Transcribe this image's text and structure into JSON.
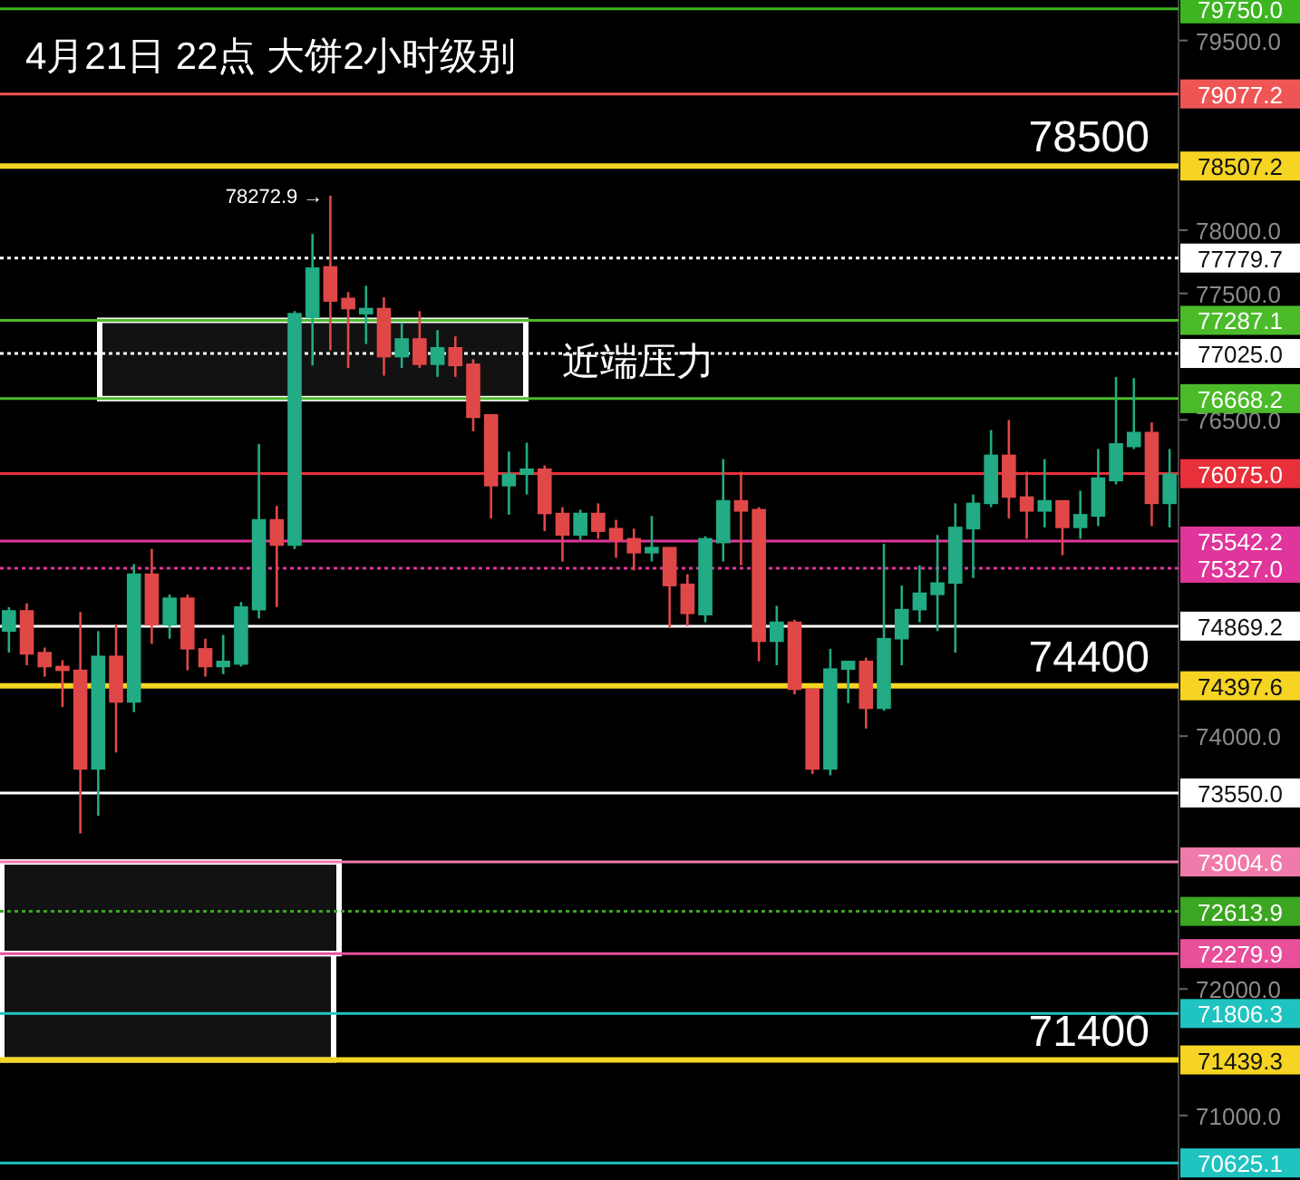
{
  "chart_data": {
    "type": "candlestick",
    "title": "4月21日 22点 大饼2小时级别",
    "categories": [
      null,
      null,
      null,
      null,
      null,
      null,
      null,
      null,
      null,
      null,
      null,
      null,
      null,
      null,
      null,
      null,
      null,
      null,
      null,
      null,
      null,
      null,
      null,
      null,
      null,
      null,
      null,
      null,
      null,
      null,
      null,
      null,
      null,
      null,
      null,
      null,
      null,
      null,
      null,
      null,
      null,
      null,
      null,
      null,
      null,
      null,
      null,
      null,
      null,
      null,
      null,
      null,
      null,
      null,
      null,
      null,
      null,
      null,
      null,
      null,
      null,
      null,
      null,
      null,
      null,
      null
    ],
    "ohlc": [
      [
        74830,
        75020,
        74660,
        74990
      ],
      [
        74990,
        75050,
        74560,
        74650
      ],
      [
        74660,
        74700,
        74470,
        74550
      ],
      [
        74550,
        74600,
        74230,
        74520
      ],
      [
        74520,
        74980,
        73230,
        73740
      ],
      [
        73740,
        74830,
        73370,
        74630
      ],
      [
        74630,
        74880,
        73870,
        74270
      ],
      [
        74270,
        75360,
        74190,
        75280
      ],
      [
        75280,
        75480,
        74730,
        74880
      ],
      [
        74880,
        75120,
        74770,
        75090
      ],
      [
        75090,
        75120,
        74520,
        74690
      ],
      [
        74690,
        74770,
        74470,
        74550
      ],
      [
        74550,
        74800,
        74490,
        74590
      ],
      [
        74570,
        75060,
        74550,
        75020
      ],
      [
        75000,
        76310,
        74930,
        75710
      ],
      [
        75710,
        75820,
        75020,
        75510
      ],
      [
        75510,
        77360,
        75480,
        77340
      ],
      [
        77310,
        77970,
        76930,
        77700
      ],
      [
        77710,
        78272.9,
        77050,
        77440
      ],
      [
        77460,
        77510,
        76910,
        77380
      ],
      [
        77340,
        77560,
        77100,
        77380
      ],
      [
        77380,
        77470,
        76850,
        77000
      ],
      [
        77000,
        77270,
        76910,
        77140
      ],
      [
        77140,
        77360,
        76910,
        76940
      ],
      [
        76940,
        77210,
        76840,
        77070
      ],
      [
        77070,
        77160,
        76840,
        76930
      ],
      [
        76940,
        76980,
        76410,
        76520
      ],
      [
        76540,
        76540,
        75720,
        75980
      ],
      [
        75980,
        76250,
        75750,
        76070
      ],
      [
        76070,
        76320,
        75910,
        76110
      ],
      [
        76110,
        76140,
        75620,
        75760
      ],
      [
        75760,
        75810,
        75380,
        75590
      ],
      [
        75590,
        75790,
        75550,
        75760
      ],
      [
        75760,
        75840,
        75560,
        75620
      ],
      [
        75640,
        75710,
        75410,
        75550
      ],
      [
        75560,
        75640,
        75310,
        75450
      ],
      [
        75450,
        75740,
        75380,
        75490
      ],
      [
        75490,
        75490,
        74860,
        75190
      ],
      [
        75200,
        75280,
        74870,
        74970
      ],
      [
        74960,
        75580,
        74900,
        75560
      ],
      [
        75530,
        76190,
        75380,
        75860
      ],
      [
        75860,
        76090,
        75350,
        75780
      ],
      [
        75790,
        75810,
        74590,
        74750
      ],
      [
        74750,
        75030,
        74560,
        74900
      ],
      [
        74900,
        74920,
        74330,
        74370
      ],
      [
        74370,
        74370,
        73700,
        73740
      ],
      [
        73740,
        74690,
        73690,
        74530
      ],
      [
        74530,
        74590,
        74260,
        74590
      ],
      [
        74590,
        74620,
        74060,
        74220
      ],
      [
        74220,
        75520,
        74200,
        74770
      ],
      [
        74770,
        75190,
        74560,
        75000
      ],
      [
        75000,
        75350,
        74900,
        75130
      ],
      [
        75120,
        75590,
        74830,
        75210
      ],
      [
        75210,
        75840,
        74660,
        75650
      ],
      [
        75640,
        75910,
        75250,
        75840
      ],
      [
        75840,
        76420,
        75810,
        76220
      ],
      [
        76220,
        76500,
        75720,
        75890
      ],
      [
        75890,
        76090,
        75560,
        75780
      ],
      [
        75780,
        76190,
        75650,
        75860
      ],
      [
        75860,
        75860,
        75430,
        75650
      ],
      [
        75650,
        75940,
        75560,
        75750
      ],
      [
        75740,
        76270,
        75660,
        76040
      ],
      [
        76020,
        76840,
        75990,
        76310
      ],
      [
        76290,
        76830,
        76270,
        76400
      ],
      [
        76400,
        76480,
        75660,
        75840
      ],
      [
        75840,
        76270,
        75650,
        76070
      ]
    ],
    "ylim": [
      70490,
      79820
    ],
    "yticks": [
      {
        "value": 71000,
        "label": "71000.0"
      },
      {
        "value": 72000,
        "label": "72000.0"
      },
      {
        "value": 74000,
        "label": "74000.0"
      },
      {
        "value": 76500,
        "label": "76500.0"
      },
      {
        "value": 77500,
        "label": "77500.0"
      },
      {
        "value": 78000,
        "label": "78000.0"
      },
      {
        "value": 79500,
        "label": "79500.0"
      }
    ],
    "tick_labels": "y",
    "ref_lines": [
      {
        "axis": "y",
        "value": 79750.0,
        "label": "79750.0",
        "color": "#3cb521",
        "line_style": "solid"
      },
      {
        "axis": "y",
        "value": 79077.2,
        "label": "79077.2",
        "color": "#f05555",
        "line_style": "solid"
      },
      {
        "axis": "y",
        "value": 78507.2,
        "label": "78507.2",
        "color": "#f5d423",
        "line_style": "solid"
      },
      {
        "axis": "y",
        "value": 77779.7,
        "label": "77779.7",
        "color": "#ffffff",
        "line_style": "dotted"
      },
      {
        "axis": "y",
        "value": 77287.1,
        "label": "77287.1",
        "color": "#4cbb2a",
        "line_style": "solid"
      },
      {
        "axis": "y",
        "value": 77025.0,
        "label": "77025.0",
        "color": "#ffffff",
        "line_style": "dotted"
      },
      {
        "axis": "y",
        "value": 76668.2,
        "label": "76668.2",
        "color": "#4cbb2a",
        "line_style": "solid"
      },
      {
        "axis": "y",
        "value": 76075.0,
        "label": "76075.0",
        "color": "#e8303a",
        "line_style": "solid"
      },
      {
        "axis": "y",
        "value": 75542.2,
        "label": "75542.2",
        "color": "#e0359a",
        "line_style": "solid"
      },
      {
        "axis": "y",
        "value": 75327.0,
        "label": "75327.0",
        "color": "#e0359a",
        "line_style": "dotted"
      },
      {
        "axis": "y",
        "value": 74869.2,
        "label": "74869.2",
        "color": "#ffffff",
        "line_style": "solid"
      },
      {
        "axis": "y",
        "value": 74397.6,
        "label": "74397.6",
        "color": "#f5d423",
        "line_style": "solid"
      },
      {
        "axis": "y",
        "value": 73550.0,
        "label": "73550.0",
        "color": "#ffffff",
        "line_style": "solid"
      },
      {
        "axis": "y",
        "value": 73004.6,
        "label": "73004.6",
        "color": "#f07aaa",
        "line_style": "solid"
      },
      {
        "axis": "y",
        "value": 72613.9,
        "label": "72613.9",
        "color": "#3ca521",
        "line_style": "dotted"
      },
      {
        "axis": "y",
        "value": 72279.9,
        "label": "72279.9",
        "color": "#e8509c",
        "line_style": "solid"
      },
      {
        "axis": "y",
        "value": 71806.3,
        "label": "71806.3",
        "color": "#1fc3c0",
        "line_style": "solid"
      },
      {
        "axis": "y",
        "value": 71439.3,
        "label": "71439.3",
        "color": "#f5d423",
        "line_style": "solid"
      },
      {
        "axis": "y",
        "value": 70625.1,
        "label": "70625.1",
        "color": "#1fc3c0",
        "line_style": "solid"
      }
    ],
    "bands": [
      {
        "axis": "y",
        "from": 76668.2,
        "to": 77287.1,
        "label": "近端压力",
        "color": "#ffffff"
      },
      {
        "axis": "y",
        "from": 72279.9,
        "to": 73004.6,
        "color": "#ffffff"
      },
      {
        "axis": "y",
        "from": 71439.3,
        "to": 72279.9,
        "color": "#ffffff"
      }
    ],
    "annotations": [
      "78272.9 →",
      {
        "text": "78500",
        "y": 78507.2
      },
      {
        "text": "74400",
        "y": 74397.6
      },
      {
        "text": "71400",
        "y": 71439.3
      }
    ],
    "grid": false
  }
}
